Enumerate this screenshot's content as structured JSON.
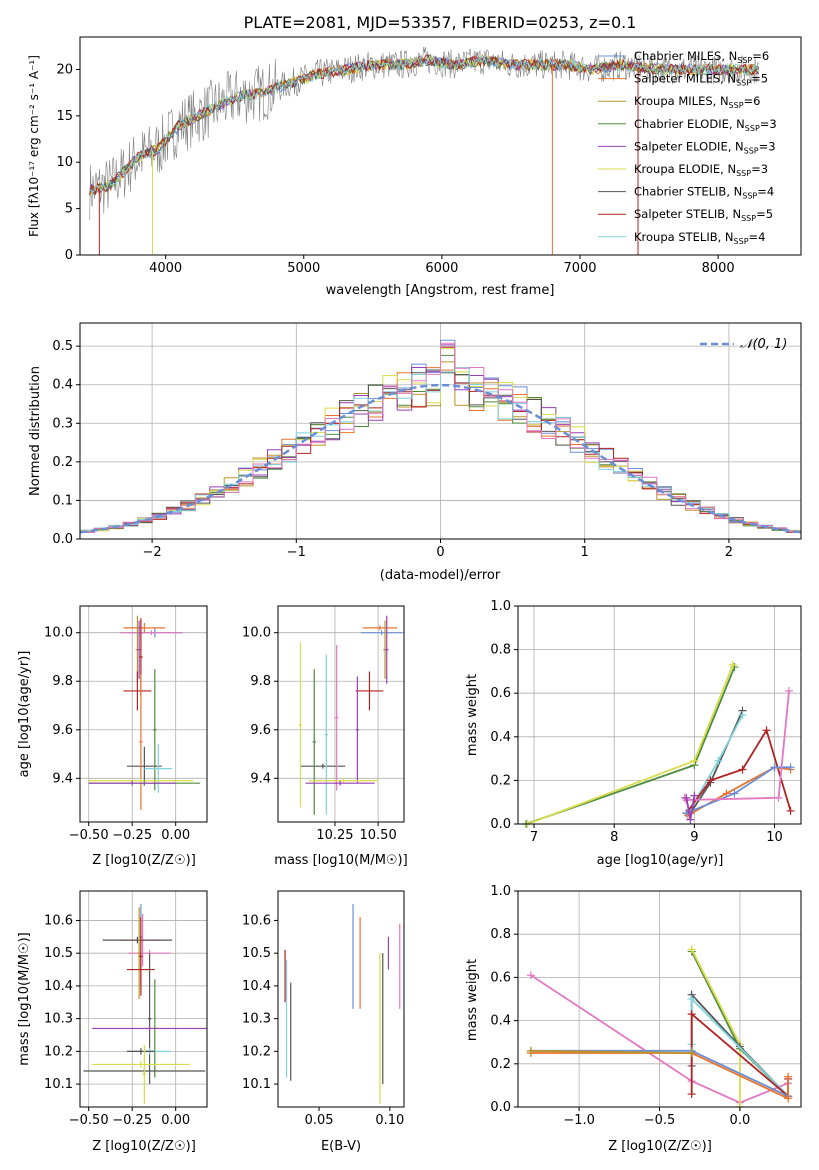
{
  "figure": {
    "title": "PLATE=2081, MJD=53357, FIBERID=0253, z=0.1"
  },
  "chart_data": [
    {
      "id": "spectrum",
      "type": "line",
      "xlabel": "wavelength [Angstrom, rest frame]",
      "ylabel": "Flux [fλ10⁻¹⁷ erg cm⁻² s⁻¹ A⁻¹]",
      "xlim": [
        3380,
        8600
      ],
      "ylim": [
        0,
        23.5
      ],
      "xticks": [
        4000,
        5000,
        6000,
        7000,
        8000
      ],
      "yticks": [
        0,
        5,
        10,
        15,
        20
      ],
      "grid": false,
      "legend_position": "right",
      "continuum": {
        "x": [
          3450,
          3600,
          3800,
          3950,
          4100,
          4300,
          4500,
          4700,
          4900,
          5100,
          5300,
          5500,
          5700,
          5900,
          6100,
          6300,
          6500,
          6700,
          6900,
          7100,
          7300,
          7600,
          8000,
          8300
        ],
        "y": [
          7,
          7.5,
          10.5,
          11.5,
          14,
          15.5,
          17,
          17.5,
          18.5,
          19.5,
          20,
          20.5,
          20.5,
          21,
          20.5,
          21,
          20.5,
          20.5,
          20.5,
          20,
          20.5,
          20,
          20,
          20
        ]
      },
      "series": [
        {
          "name": "Chabrier MILES, N_SSP=6",
          "color": "#6b8fd6"
        },
        {
          "name": "Salpeter MILES, N_SSP=5",
          "color": "#e8742c"
        },
        {
          "name": "Kroupa MILES, N_SSP=6",
          "color": "#b8952a"
        },
        {
          "name": "Chabrier ELODIE, N_SSP=3",
          "color": "#4f8c3f"
        },
        {
          "name": "Salpeter ELODIE, N_SSP=3",
          "color": "#9b3fb5"
        },
        {
          "name": "Kroupa ELODIE, N_SSP=3",
          "color": "#d9dc4c"
        },
        {
          "name": "Chabrier STELIB, N_SSP=4",
          "color": "#555555"
        },
        {
          "name": "Salpeter STELIB, N_SSP=5",
          "color": "#b22222"
        },
        {
          "name": "Kroupa STELIB, N_SSP=4",
          "color": "#7fd3dd"
        }
      ]
    },
    {
      "id": "residuals",
      "type": "line",
      "xlabel": "(data-model)/error",
      "ylabel": "Normed distribution",
      "xlim": [
        -2.5,
        2.5
      ],
      "ylim": [
        0,
        0.56
      ],
      "xticks": [
        -2,
        -1,
        0,
        1,
        2
      ],
      "yticks": [
        0.0,
        0.1,
        0.2,
        0.3,
        0.4,
        0.5
      ],
      "grid": true,
      "legend": "𝒩(0, 1)",
      "legend_position": "top-right",
      "hist_colors": [
        "#6b8fd6",
        "#e8742c",
        "#b8952a",
        "#4f8c3f",
        "#9b3fb5",
        "#d9dc4c",
        "#555555",
        "#b22222",
        "#7fd3dd",
        "#e377c2"
      ]
    },
    {
      "id": "age-z",
      "type": "scatter",
      "xlabel": "Z [log10(Z/Z☉)]",
      "ylabel": "age  [log10(age/yr)]",
      "xlim": [
        -0.55,
        0.18
      ],
      "ylim": [
        9.22,
        10.11
      ],
      "xticks": [
        -0.5,
        -0.25,
        0.0
      ],
      "yticks": [
        9.4,
        9.6,
        9.8,
        10.0
      ],
      "grid": true,
      "points": [
        {
          "x": -0.12,
          "xe": 0.16,
          "y": 10.0,
          "ye": 0.02,
          "c": "#6b8fd6"
        },
        {
          "x": -0.14,
          "xe": 0.18,
          "y": 10.0,
          "ye": 0.01,
          "c": "#e377c2"
        },
        {
          "x": -0.18,
          "xe": 0.12,
          "y": 10.02,
          "ye": 0.02,
          "c": "#e8742c"
        },
        {
          "x": -0.22,
          "xe": 0.01,
          "y": 9.93,
          "ye": 0.14,
          "c": "#b8952a"
        },
        {
          "x": -0.21,
          "xe": 0.01,
          "y": 9.93,
          "ye": 0.12,
          "c": "#9b3fb5"
        },
        {
          "x": -0.2,
          "xe": 0.01,
          "y": 9.9,
          "ye": 0.16,
          "c": "#b22222"
        },
        {
          "x": -0.22,
          "xe": 0.08,
          "y": 9.76,
          "ye": 0.08,
          "c": "#b22222"
        },
        {
          "x": -0.18,
          "xe": 0.1,
          "y": 9.45,
          "ye": 0.08,
          "c": "#555555"
        },
        {
          "x": -0.2,
          "xe": 0.01,
          "y": 9.55,
          "ye": 0.28,
          "c": "#e8742c"
        },
        {
          "x": -0.12,
          "xe": 0.01,
          "y": 9.6,
          "ye": 0.25,
          "c": "#4f8c3f"
        },
        {
          "x": -0.1,
          "xe": 0.08,
          "y": 9.44,
          "ye": 0.1,
          "c": "#7fd3dd"
        },
        {
          "x": -0.2,
          "xe": 0.3,
          "y": 9.39,
          "ye": 0.01,
          "c": "#d9dc4c"
        },
        {
          "x": -0.18,
          "xe": 0.32,
          "y": 9.38,
          "ye": 0.01,
          "c": "#4f8c3f"
        },
        {
          "x": -0.25,
          "xe": 0.25,
          "y": 9.38,
          "ye": 0.01,
          "c": "#9b3fb5"
        }
      ]
    },
    {
      "id": "age-mass",
      "type": "scatter",
      "xlabel": "mass [log10(M/M☉)]",
      "ylabel": "",
      "xlim": [
        9.92,
        10.65
      ],
      "ylim": [
        9.22,
        10.11
      ],
      "xticks": [
        10.25,
        10.5
      ],
      "yticks": [
        9.4,
        9.6,
        9.8,
        10.0
      ],
      "grid": true,
      "points": [
        {
          "x": 10.52,
          "xe": 0.12,
          "y": 10.0,
          "ye": 0.01,
          "c": "#6b8fd6"
        },
        {
          "x": 10.51,
          "xe": 0.1,
          "y": 10.02,
          "ye": 0.01,
          "c": "#e8742c"
        },
        {
          "x": 10.54,
          "xe": 0.01,
          "y": 9.93,
          "ye": 0.12,
          "c": "#b8952a"
        },
        {
          "x": 10.55,
          "xe": 0.01,
          "y": 9.93,
          "ye": 0.14,
          "c": "#9b3fb5"
        },
        {
          "x": 10.45,
          "xe": 0.08,
          "y": 9.76,
          "ye": 0.08,
          "c": "#b22222"
        },
        {
          "x": 10.18,
          "xe": 0.13,
          "y": 9.45,
          "ye": 0.01,
          "c": "#555555"
        },
        {
          "x": 10.05,
          "xe": 0.01,
          "y": 9.62,
          "ye": 0.34,
          "c": "#d9dc4c"
        },
        {
          "x": 10.13,
          "xe": 0.01,
          "y": 9.55,
          "ye": 0.3,
          "c": "#4f8c3f"
        },
        {
          "x": 10.2,
          "xe": 0.01,
          "y": 9.58,
          "ye": 0.33,
          "c": "#7fd3dd"
        },
        {
          "x": 10.26,
          "xe": 0.01,
          "y": 9.65,
          "ye": 0.3,
          "c": "#e377c2"
        },
        {
          "x": 10.38,
          "xe": 0.01,
          "y": 9.6,
          "ye": 0.22,
          "c": "#9b3fb5"
        },
        {
          "x": 10.3,
          "xe": 0.2,
          "y": 9.39,
          "ye": 0.01,
          "c": "#d9dc4c"
        },
        {
          "x": 10.28,
          "xe": 0.2,
          "y": 9.38,
          "ye": 0.01,
          "c": "#9b3fb5"
        }
      ]
    },
    {
      "id": "mw-age",
      "type": "line",
      "xlabel": "age  [log10(age/yr)]",
      "ylabel": "mass weight",
      "xlim": [
        6.8,
        10.33
      ],
      "ylim": [
        0,
        1
      ],
      "xticks": [
        7,
        8,
        9,
        10
      ],
      "yticks": [
        0.0,
        0.2,
        0.4,
        0.6,
        0.8,
        1.0
      ],
      "grid": true,
      "series": [
        {
          "c": "#4f8c3f",
          "x": [
            6.9,
            9.0,
            9.5
          ],
          "y": [
            0.0,
            0.27,
            0.72
          ]
        },
        {
          "c": "#d9dc4c",
          "x": [
            6.92,
            9.0,
            9.48
          ],
          "y": [
            0.0,
            0.29,
            0.73
          ]
        },
        {
          "c": "#555555",
          "x": [
            8.95,
            9.2,
            9.6
          ],
          "y": [
            0.05,
            0.19,
            0.52
          ]
        },
        {
          "c": "#7fd3dd",
          "x": [
            8.92,
            9.3,
            9.6
          ],
          "y": [
            0.05,
            0.29,
            0.5
          ]
        },
        {
          "c": "#b22222",
          "x": [
            8.9,
            9.2,
            9.6,
            9.9,
            10.2
          ],
          "y": [
            0.05,
            0.2,
            0.25,
            0.43,
            0.06
          ]
        },
        {
          "c": "#e8742c",
          "x": [
            8.92,
            9.4,
            10.0,
            10.2
          ],
          "y": [
            0.04,
            0.14,
            0.26,
            0.25
          ]
        },
        {
          "c": "#6b8fd6",
          "x": [
            8.9,
            9.5,
            10.0,
            10.2
          ],
          "y": [
            0.05,
            0.14,
            0.26,
            0.26
          ]
        },
        {
          "c": "#e377c2",
          "x": [
            8.88,
            8.9,
            10.05,
            10.18
          ],
          "y": [
            0.12,
            0.11,
            0.12,
            0.61
          ]
        },
        {
          "c": "#9b3fb5",
          "x": [
            8.9,
            8.95,
            9.0
          ],
          "y": [
            0.12,
            0.02,
            0.13
          ]
        }
      ]
    },
    {
      "id": "mass-z",
      "type": "scatter",
      "xlabel": "Z [log10(Z/Z☉)]",
      "ylabel": "mass [log10(M/M☉)]",
      "xlim": [
        -0.55,
        0.18
      ],
      "ylim": [
        10.03,
        10.69
      ],
      "xticks": [
        -0.5,
        -0.25,
        0.0
      ],
      "yticks": [
        10.1,
        10.2,
        10.3,
        10.4,
        10.5,
        10.6
      ],
      "grid": true,
      "points": [
        {
          "x": -0.2,
          "xe": 0.01,
          "y": 10.55,
          "ye": 0.1,
          "c": "#6b8fd6"
        },
        {
          "x": -0.19,
          "xe": 0.01,
          "y": 10.54,
          "ye": 0.08,
          "c": "#e377c2"
        },
        {
          "x": -0.2,
          "xe": 0.12,
          "y": 10.54,
          "ye": 0.01,
          "c": "#e8742c"
        },
        {
          "x": -0.22,
          "xe": 0.2,
          "y": 10.54,
          "ye": 0.01,
          "c": "#555555"
        },
        {
          "x": -0.15,
          "xe": 0.12,
          "y": 10.5,
          "ye": 0.01,
          "c": "#e377c2"
        },
        {
          "x": -0.21,
          "xe": 0.01,
          "y": 10.5,
          "ye": 0.14,
          "c": "#b8952a"
        },
        {
          "x": -0.2,
          "xe": 0.01,
          "y": 10.49,
          "ye": 0.12,
          "c": "#b22222"
        },
        {
          "x": -0.2,
          "xe": 0.08,
          "y": 10.45,
          "ye": 0.05,
          "c": "#b22222"
        },
        {
          "x": -0.12,
          "xe": 0.01,
          "y": 10.27,
          "ye": 0.15,
          "c": "#4f8c3f"
        },
        {
          "x": -0.15,
          "xe": 0.01,
          "y": 10.3,
          "ye": 0.2,
          "c": "#555555"
        },
        {
          "x": -0.15,
          "xe": 0.33,
          "y": 10.27,
          "ye": 0.01,
          "c": "#9b3fb5"
        },
        {
          "x": -0.15,
          "xe": 0.12,
          "y": 10.2,
          "ye": 0.01,
          "c": "#7fd3dd"
        },
        {
          "x": -0.2,
          "xe": 0.08,
          "y": 10.2,
          "ye": 0.01,
          "c": "#555555"
        },
        {
          "x": -0.2,
          "xe": 0.28,
          "y": 10.16,
          "ye": 0.01,
          "c": "#d9dc4c"
        },
        {
          "x": -0.18,
          "xe": 0.35,
          "y": 10.14,
          "ye": 0.01,
          "c": "#555555"
        },
        {
          "x": -0.18,
          "xe": 0.01,
          "y": 10.13,
          "ye": 0.09,
          "c": "#d9dc4c"
        }
      ]
    },
    {
      "id": "mass-ebv",
      "type": "scatter",
      "xlabel": "E(B-V)",
      "ylabel": "",
      "xlim": [
        0.021,
        0.11
      ],
      "ylim": [
        10.03,
        10.69
      ],
      "xticks": [
        0.05,
        0.1
      ],
      "yticks": [
        10.1,
        10.2,
        10.3,
        10.4,
        10.5,
        10.6
      ],
      "grid": false,
      "points": [
        {
          "x": 0.074,
          "xe": 0.0,
          "y": 10.49,
          "ye": 0.16,
          "c": "#6b8fd6"
        },
        {
          "x": 0.079,
          "xe": 0.0,
          "y": 10.47,
          "ye": 0.14,
          "c": "#e8742c"
        },
        {
          "x": 0.093,
          "xe": 0.0,
          "y": 10.27,
          "ye": 0.23,
          "c": "#d9dc4c"
        },
        {
          "x": 0.095,
          "xe": 0.0,
          "y": 10.3,
          "ye": 0.2,
          "c": "#555555"
        },
        {
          "x": 0.099,
          "xe": 0.0,
          "y": 10.5,
          "ye": 0.05,
          "c": "#9b3fb5"
        },
        {
          "x": 0.107,
          "xe": 0.0,
          "y": 10.46,
          "ye": 0.13,
          "c": "#e377c2"
        },
        {
          "x": 0.026,
          "xe": 0.0,
          "y": 10.43,
          "ye": 0.08,
          "c": "#b22222"
        },
        {
          "x": 0.027,
          "xe": 0.0,
          "y": 10.3,
          "ye": 0.18,
          "c": "#7fd3dd"
        },
        {
          "x": 0.03,
          "xe": 0.0,
          "y": 10.26,
          "ye": 0.15,
          "c": "#555555"
        }
      ]
    },
    {
      "id": "mw-z",
      "type": "line",
      "xlabel": "Z [log10(Z/Z☉)]",
      "ylabel": "mass weight",
      "xlim": [
        -1.38,
        0.38
      ],
      "ylim": [
        0,
        1
      ],
      "xticks": [
        -1.0,
        -0.5,
        0.0
      ],
      "yticks": [
        0.0,
        0.2,
        0.4,
        0.6,
        0.8,
        1.0
      ],
      "grid": true,
      "series": [
        {
          "c": "#e377c2",
          "x": [
            -1.3,
            -0.3,
            0.0,
            0.3
          ],
          "y": [
            0.61,
            0.12,
            0.02,
            0.11
          ]
        },
        {
          "c": "#4f8c3f",
          "x": [
            -0.3,
            0.0,
            0.3
          ],
          "y": [
            0.72,
            0.27,
            0.05
          ]
        },
        {
          "c": "#d9dc4c",
          "x": [
            -0.3,
            0.0,
            0.0
          ],
          "y": [
            0.73,
            0.29,
            0.0
          ]
        },
        {
          "c": "#555555",
          "x": [
            -0.3,
            -0.3,
            0.0,
            0.3
          ],
          "y": [
            0.19,
            0.52,
            0.28,
            0.05
          ]
        },
        {
          "c": "#7fd3dd",
          "x": [
            -0.3,
            -0.3,
            0.3
          ],
          "y": [
            0.29,
            0.5,
            0.05
          ]
        },
        {
          "c": "#b22222",
          "x": [
            -0.3,
            -0.3,
            0.3,
            0.3
          ],
          "y": [
            0.06,
            0.43,
            0.05,
            0.13
          ]
        },
        {
          "c": "#6b8fd6",
          "x": [
            -1.3,
            -0.3,
            0.3
          ],
          "y": [
            0.26,
            0.26,
            0.05
          ]
        },
        {
          "c": "#e8742c",
          "x": [
            -1.3,
            -0.3,
            0.3,
            0.3
          ],
          "y": [
            0.25,
            0.25,
            0.04,
            0.14
          ]
        },
        {
          "c": "#b8952a",
          "x": [
            -1.3,
            -0.3
          ],
          "y": [
            0.26,
            0.25
          ]
        }
      ]
    }
  ]
}
